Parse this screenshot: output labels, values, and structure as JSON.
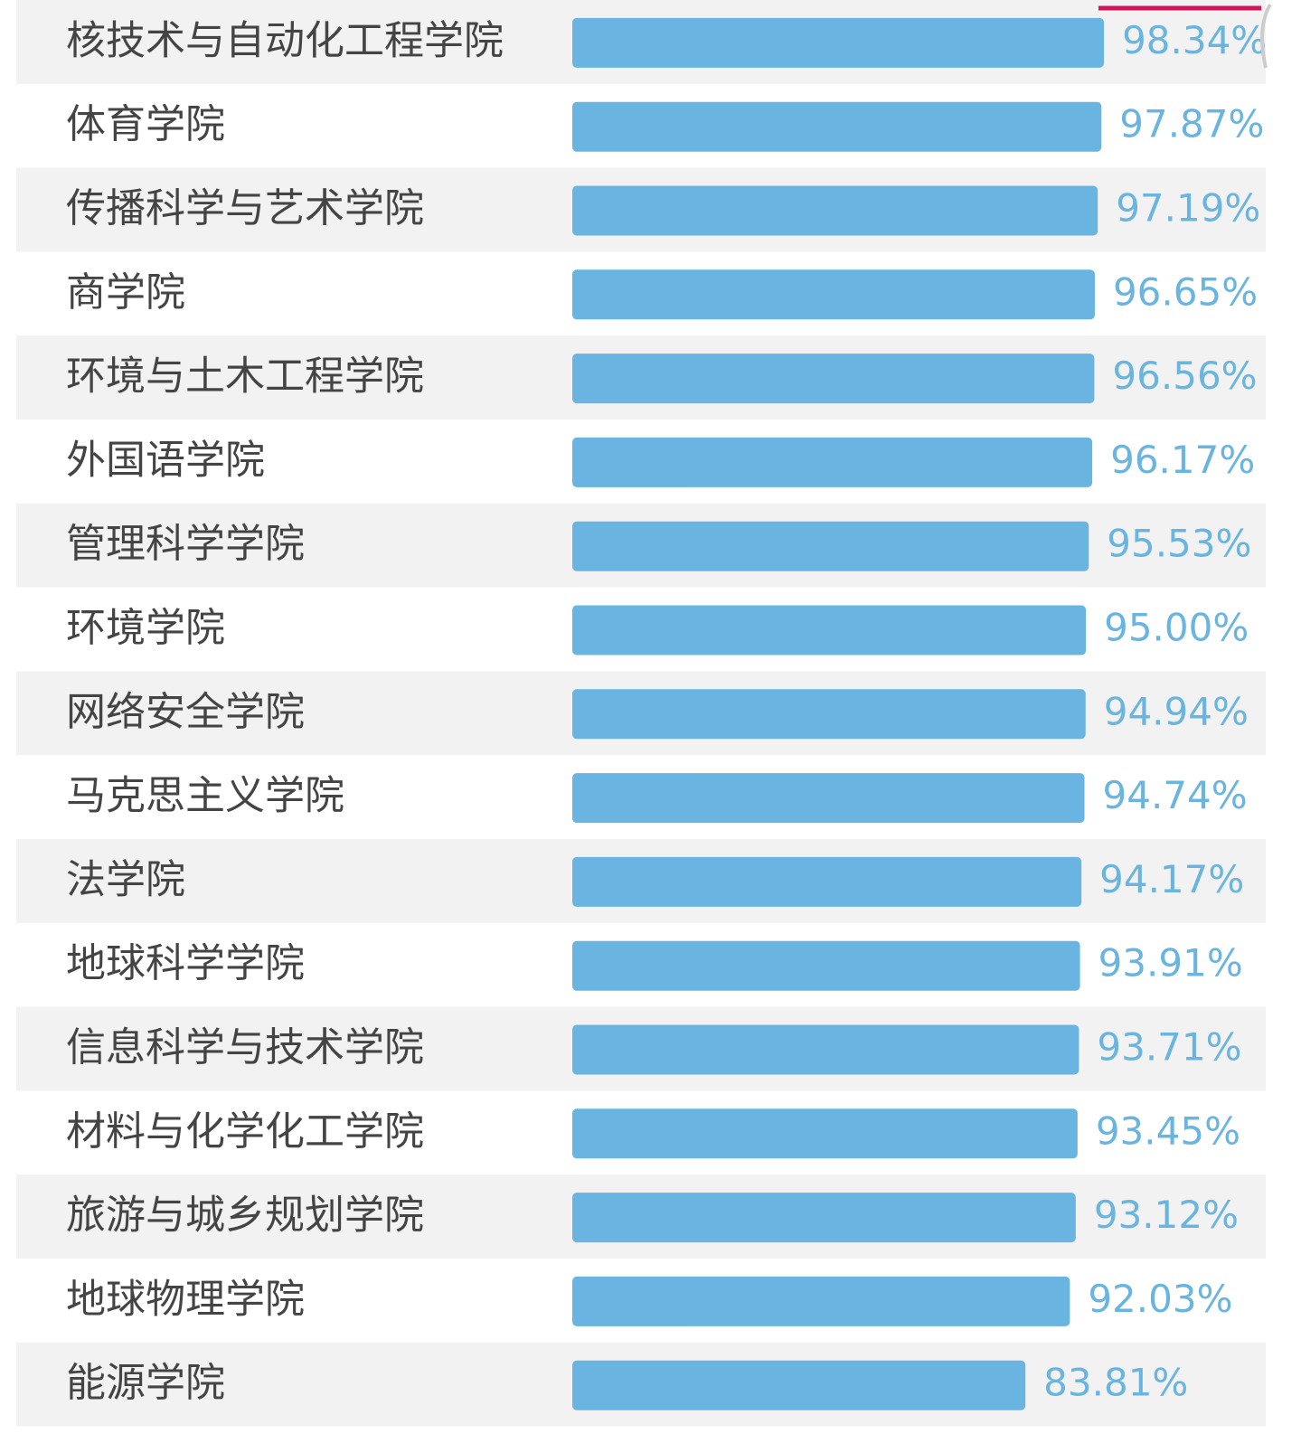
{
  "chart_data": {
    "type": "bar",
    "orientation": "horizontal",
    "categories": [
      "核技术与自动化工程学院",
      "体育学院",
      "传播科学与艺术学院",
      "商学院",
      "环境与土木工程学院",
      "外国语学院",
      "管理科学学院",
      "环境学院",
      "网络安全学院",
      "马克思主义学院",
      "法学院",
      "地球科学学院",
      "信息科学与技术学院",
      "材料与化学化工学院",
      "旅游与城乡规划学院",
      "地球物理学院",
      "能源学院"
    ],
    "values": [
      98.34,
      97.87,
      97.19,
      96.65,
      96.56,
      96.17,
      95.53,
      95.0,
      94.94,
      94.74,
      94.17,
      93.91,
      93.71,
      93.45,
      93.12,
      92.03,
      83.81
    ],
    "value_labels": [
      "98.34%",
      "97.87%",
      "97.19%",
      "96.65%",
      "96.56%",
      "96.17%",
      "95.53%",
      "95.00%",
      "94.94%",
      "94.74%",
      "94.17%",
      "93.91%",
      "93.71%",
      "93.45%",
      "93.12%",
      "92.03%",
      "83.81%"
    ],
    "color": "#69b4e1",
    "xlim": [
      0,
      100
    ]
  }
}
